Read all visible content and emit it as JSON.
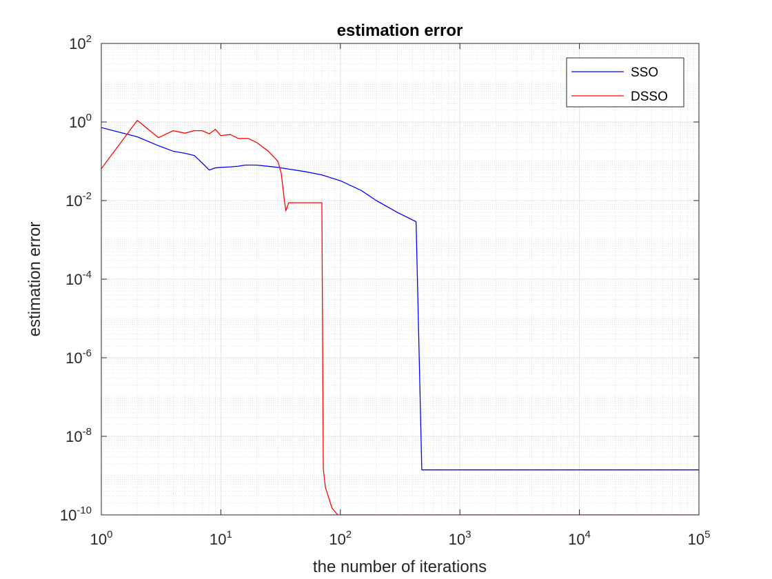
{
  "chart_data": {
    "type": "line",
    "title": "estimation error",
    "xlabel": "the number of iterations",
    "ylabel": "estimation error",
    "xscale": "log",
    "yscale": "log",
    "xlim": [
      1,
      100000
    ],
    "ylim": [
      1e-10,
      100
    ],
    "x_ticks": [
      {
        "base": "10",
        "exp": "0"
      },
      {
        "base": "10",
        "exp": "1"
      },
      {
        "base": "10",
        "exp": "2"
      },
      {
        "base": "10",
        "exp": "3"
      },
      {
        "base": "10",
        "exp": "4"
      },
      {
        "base": "10",
        "exp": "5"
      }
    ],
    "y_ticks": [
      {
        "base": "10",
        "exp": "-10"
      },
      {
        "base": "10",
        "exp": "-8"
      },
      {
        "base": "10",
        "exp": "-6"
      },
      {
        "base": "10",
        "exp": "-4"
      },
      {
        "base": "10",
        "exp": "-2"
      },
      {
        "base": "10",
        "exp": "0"
      },
      {
        "base": "10",
        "exp": "2"
      }
    ],
    "grid": true,
    "legend_position": "top-right",
    "series": [
      {
        "name": "SSO",
        "color": "#0000ff",
        "points": [
          [
            1,
            0.72
          ],
          [
            2,
            0.42
          ],
          [
            3,
            0.25
          ],
          [
            4,
            0.18
          ],
          [
            5,
            0.16
          ],
          [
            6,
            0.14
          ],
          [
            7,
            0.09
          ],
          [
            8,
            0.06
          ],
          [
            9,
            0.068
          ],
          [
            10,
            0.07
          ],
          [
            12,
            0.072
          ],
          [
            14,
            0.075
          ],
          [
            16,
            0.08
          ],
          [
            20,
            0.08
          ],
          [
            30,
            0.07
          ],
          [
            50,
            0.055
          ],
          [
            70,
            0.045
          ],
          [
            100,
            0.032
          ],
          [
            150,
            0.018
          ],
          [
            200,
            0.01
          ],
          [
            300,
            0.005
          ],
          [
            430,
            0.0029
          ],
          [
            480,
            1.4e-09
          ],
          [
            100000,
            1.4e-09
          ]
        ]
      },
      {
        "name": "DSSO",
        "color": "#ff0000",
        "points": [
          [
            1,
            0.065
          ],
          [
            2,
            1.1
          ],
          [
            3,
            0.4
          ],
          [
            4,
            0.6
          ],
          [
            5,
            0.52
          ],
          [
            6,
            0.6
          ],
          [
            7,
            0.6
          ],
          [
            8,
            0.5
          ],
          [
            9,
            0.65
          ],
          [
            10,
            0.45
          ],
          [
            12,
            0.48
          ],
          [
            14,
            0.38
          ],
          [
            17,
            0.38
          ],
          [
            20,
            0.3
          ],
          [
            25,
            0.18
          ],
          [
            30,
            0.1
          ],
          [
            32,
            0.05
          ],
          [
            34,
            0.01
          ],
          [
            35,
            0.0055
          ],
          [
            37,
            0.0088
          ],
          [
            70,
            0.0088
          ],
          [
            72,
            1.5e-09
          ],
          [
            75,
            5e-10
          ],
          [
            85,
            1.5e-10
          ],
          [
            95,
            1e-10
          ],
          [
            100000,
            1e-10
          ]
        ]
      }
    ]
  }
}
